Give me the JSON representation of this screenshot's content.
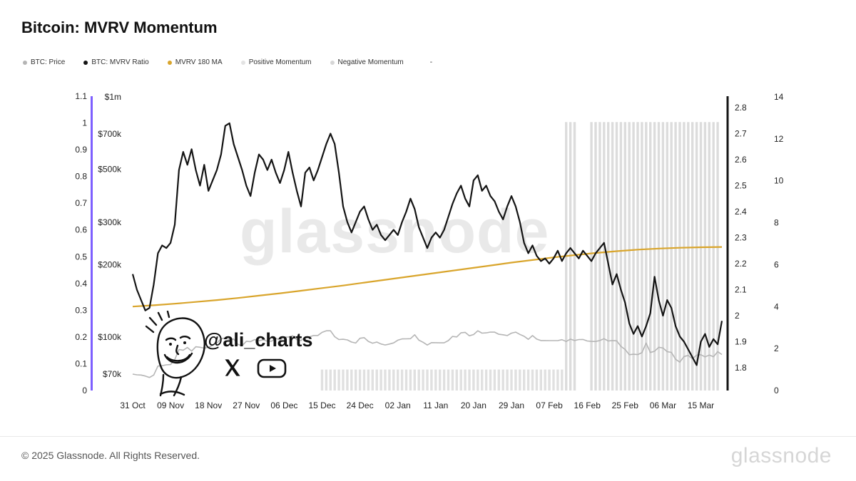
{
  "header": {
    "title": "Bitcoin: MVRV Momentum"
  },
  "legend": {
    "items": [
      {
        "label": "BTC: Price",
        "color": "#b5b5b5"
      },
      {
        "label": "BTC: MVRV Ratio",
        "color": "#141414"
      },
      {
        "label": "MVRV 180 MA",
        "color": "#d9a52c"
      },
      {
        "label": "Positive Momentum",
        "color": "#e3e3e3"
      },
      {
        "label": "Negative Momentum",
        "color": "#d6d6d6"
      },
      {
        "label": "-",
        "color": "transparent"
      }
    ]
  },
  "watermark": {
    "text": "glassnode"
  },
  "annotation": {
    "handle": "@ali_charts"
  },
  "footer": {
    "copyright": "© 2025 Glassnode. All Rights Reserved.",
    "brand": "glassnode"
  },
  "chart_data": {
    "type": "line",
    "title": "Bitcoin: MVRV Momentum",
    "x_axis": {
      "tick_labels": [
        "31 Oct",
        "09 Nov",
        "18 Nov",
        "27 Nov",
        "06 Dec",
        "15 Dec",
        "24 Dec",
        "02 Jan",
        "11 Jan",
        "20 Jan",
        "29 Jan",
        "07 Feb",
        "16 Feb",
        "25 Feb",
        "06 Mar",
        "15 Mar"
      ],
      "tick_days": [
        0,
        9,
        18,
        27,
        36,
        45,
        54,
        63,
        72,
        81,
        90,
        99,
        108,
        117,
        126,
        135
      ],
      "days_total": 140
    },
    "axes": {
      "left_outer": {
        "tick_labels": [
          "0",
          "0.1",
          "0.2",
          "0.3",
          "0.4",
          "0.5",
          "0.6",
          "0.7",
          "0.8",
          "0.9",
          "1",
          "1.1"
        ],
        "tick_values": [
          0,
          0.1,
          0.2,
          0.3,
          0.4,
          0.5,
          0.6,
          0.7,
          0.8,
          0.9,
          1,
          1.1
        ],
        "range": [
          0,
          1.1
        ],
        "axis_color": "#7d5fff"
      },
      "price": {
        "tick_labels": [
          "$70k",
          "$100k",
          "$200k",
          "$300k",
          "$500k",
          "$700k",
          "$1m"
        ],
        "tick_values_k": [
          70,
          100,
          200,
          300,
          500,
          700,
          1000
        ],
        "scale": "log"
      },
      "ratio": {
        "tick_labels": [
          "1.8",
          "1.9",
          "2",
          "2.1",
          "2.2",
          "2.3",
          "2.4",
          "2.5",
          "2.6",
          "2.7",
          "2.8"
        ],
        "tick_values": [
          1.8,
          1.9,
          2,
          2.1,
          2.2,
          2.3,
          2.4,
          2.5,
          2.6,
          2.7,
          2.8
        ],
        "range": [
          1.8,
          2.8
        ],
        "axis_color": "#141414"
      },
      "right_outer": {
        "tick_labels": [
          "0",
          "2",
          "4",
          "6",
          "8",
          "10",
          "12",
          "14"
        ],
        "tick_values": [
          0,
          2,
          4,
          6,
          8,
          10,
          12,
          14
        ],
        "range": [
          0,
          14
        ]
      }
    },
    "series": [
      {
        "name": "BTC: Price",
        "color": "#b5b5b5",
        "axis": "price",
        "unit": "USD thousands",
        "values": [
          70,
          69.5,
          69.4,
          68.7,
          67.8,
          69.4,
          75.6,
          75.9,
          76.5,
          76.7,
          80.4,
          88.7,
          88,
          90.4,
          87.3,
          91,
          90.6,
          89.8,
          90.5,
          92.3,
          94.3,
          98.3,
          99,
          97.7,
          98,
          93.1,
          91.9,
          95.9,
          95.6,
          97.5,
          96.4,
          97.3,
          95.9,
          96,
          98.8,
          97,
          99.9,
          99.9,
          101.2,
          97.4,
          96.6,
          100,
          100,
          101.4,
          101.4,
          104.5,
          106.1,
          106.1,
          100.2,
          97.5,
          97.8,
          97.2,
          95.2,
          94.3,
          98.7,
          99.3,
          95.8,
          94.2,
          95.2,
          93.5,
          92.6,
          93.4,
          94.4,
          96.9,
          98.1,
          98.2,
          98.3,
          102.1,
          96.9,
          95,
          92.5,
          94.7,
          94.6,
          94.5,
          94.5,
          96.5,
          100.5,
          100,
          104,
          104.5,
          101.1,
          102.3,
          106.1,
          103.7,
          104,
          104.8,
          104.7,
          102.6,
          102.1,
          101.3,
          103.7,
          104.7,
          102.4,
          100.6,
          97.7,
          101.3,
          97.9,
          96.6,
          96.6,
          96.5,
          96.5,
          96.5,
          97.4,
          95.7,
          97.9,
          96.6,
          97.5,
          97.6,
          96.2,
          95.8,
          95.7,
          96.6,
          98.3,
          96.2,
          96.6,
          96.3,
          91.4,
          88.7,
          84.3,
          84.7,
          84.4,
          86,
          94.3,
          86.1,
          87.2,
          90.6,
          89.9,
          86.8,
          86.2,
          80.7,
          78.5,
          82.9,
          83.7,
          81.1,
          84,
          84.3,
          82.6,
          84,
          82.7,
          86.8,
          84.5
        ]
      },
      {
        "name": "BTC: MVRV Ratio",
        "color": "#141414",
        "axis": "ratio",
        "values": [
          2.16,
          2.1,
          2.06,
          2.02,
          2.03,
          2.12,
          2.24,
          2.27,
          2.26,
          2.28,
          2.35,
          2.56,
          2.63,
          2.58,
          2.64,
          2.56,
          2.5,
          2.58,
          2.48,
          2.52,
          2.56,
          2.62,
          2.73,
          2.74,
          2.66,
          2.61,
          2.56,
          2.5,
          2.46,
          2.55,
          2.62,
          2.6,
          2.56,
          2.6,
          2.55,
          2.51,
          2.56,
          2.63,
          2.55,
          2.48,
          2.42,
          2.55,
          2.57,
          2.52,
          2.56,
          2.61,
          2.66,
          2.7,
          2.66,
          2.55,
          2.42,
          2.36,
          2.32,
          2.36,
          2.4,
          2.42,
          2.37,
          2.33,
          2.35,
          2.31,
          2.29,
          2.31,
          2.33,
          2.31,
          2.36,
          2.4,
          2.45,
          2.41,
          2.34,
          2.3,
          2.26,
          2.3,
          2.32,
          2.3,
          2.33,
          2.38,
          2.43,
          2.47,
          2.5,
          2.45,
          2.42,
          2.52,
          2.54,
          2.48,
          2.5,
          2.46,
          2.44,
          2.4,
          2.37,
          2.42,
          2.46,
          2.42,
          2.36,
          2.28,
          2.24,
          2.27,
          2.23,
          2.21,
          2.22,
          2.2,
          2.22,
          2.25,
          2.21,
          2.24,
          2.26,
          2.24,
          2.22,
          2.25,
          2.23,
          2.21,
          2.24,
          2.26,
          2.28,
          2.2,
          2.12,
          2.16,
          2.1,
          2.05,
          1.97,
          1.93,
          1.96,
          1.92,
          1.96,
          2.01,
          2.15,
          2.06,
          2,
          2.06,
          2.03,
          1.96,
          1.92,
          1.9,
          1.87,
          1.84,
          1.81,
          1.9,
          1.93,
          1.88,
          1.91,
          1.89,
          1.98
        ]
      },
      {
        "name": "MVRV 180 MA",
        "color": "#d9a52c",
        "axis": "ratio",
        "day_step": 5,
        "values": [
          2.035,
          2.04,
          2.046,
          2.053,
          2.06,
          2.068,
          2.077,
          2.086,
          2.096,
          2.106,
          2.116,
          2.127,
          2.138,
          2.149,
          2.16,
          2.171,
          2.182,
          2.193,
          2.204,
          2.214,
          2.224,
          2.233,
          2.241,
          2.248,
          2.254,
          2.258,
          2.261,
          2.263,
          2.264
        ]
      }
    ],
    "momentum": {
      "value_axis": "right_outer",
      "positive": {
        "name": "Positive Momentum",
        "color": "#e0e0e0",
        "day_start": 45,
        "day_end": 102,
        "bar_top_value": 1.0
      },
      "negative": {
        "name": "Negative Momentum",
        "color": "#dcdcdc",
        "bar_top_value": 12.8,
        "days": [
          103,
          104,
          105,
          109,
          110,
          111,
          112,
          113,
          114,
          115,
          116,
          117,
          118,
          119,
          120,
          121,
          122,
          123,
          124,
          125,
          126,
          127,
          128,
          129,
          130,
          131,
          132,
          133,
          134,
          135,
          136,
          137,
          138,
          139
        ]
      }
    }
  }
}
